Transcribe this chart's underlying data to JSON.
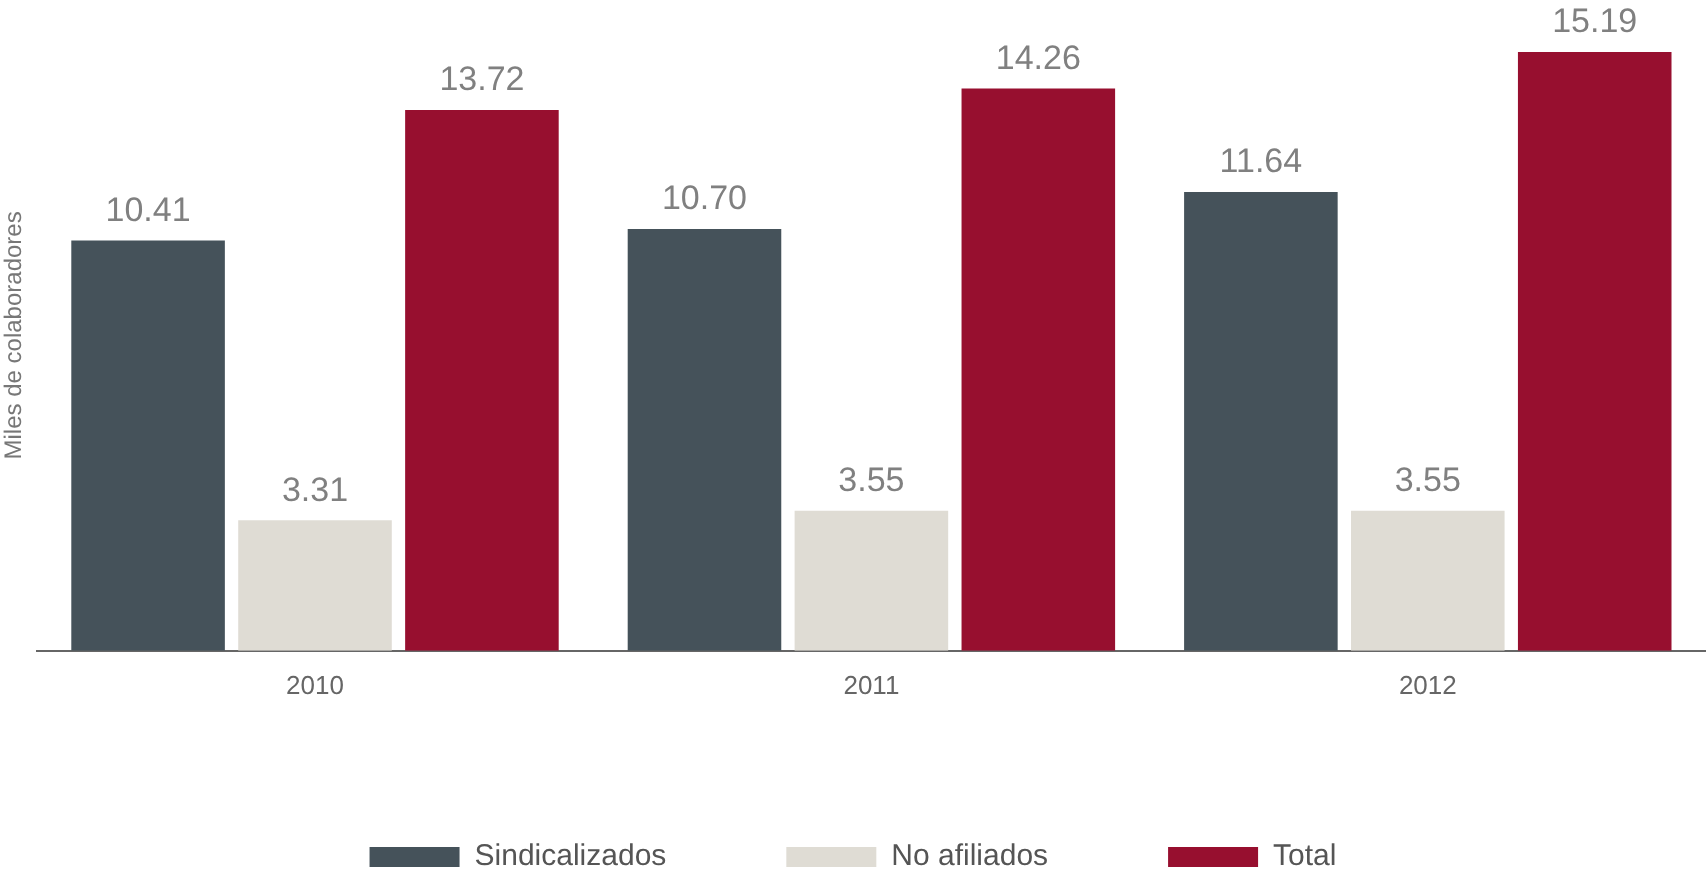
{
  "chart_data": {
    "type": "bar",
    "ylabel": "Miles de colaboradores",
    "categories": [
      "2010",
      "2011",
      "2012"
    ],
    "series": [
      {
        "name": "Sindicalizados",
        "color": "#45525a",
        "values": [
          10.41,
          10.7,
          11.64
        ],
        "value_labels": [
          "10.41",
          "10.70",
          "11.64"
        ]
      },
      {
        "name": "No afiliados",
        "color": "#dfdcd4",
        "values": [
          3.31,
          3.55,
          3.55
        ],
        "value_labels": [
          "3.31",
          "3.55",
          "3.55"
        ]
      },
      {
        "name": "Total",
        "color": "#970f2f",
        "values": [
          13.72,
          14.26,
          15.19
        ],
        "value_labels": [
          "13.72",
          "14.26",
          "15.19"
        ]
      }
    ],
    "grid": false,
    "legend": "bottom",
    "tick_labels": "x"
  }
}
